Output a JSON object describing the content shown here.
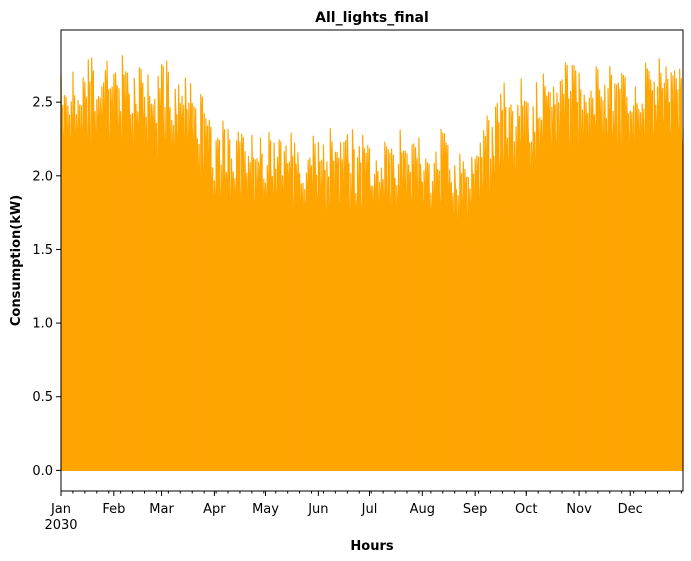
{
  "chart_data": {
    "type": "area",
    "title": "All_lights_final",
    "xlabel": "Hours",
    "ylabel": "Consumption(kW)",
    "series": [
      {
        "color": "#FFA500",
        "resolution": "hourly",
        "daily_peak_envelope": {
          "x": [
            "2030-01-01",
            "2030-01-15",
            "2030-02-01",
            "2030-02-15",
            "2030-03-01",
            "2030-03-15",
            "2030-03-23",
            "2030-04-01",
            "2030-04-15",
            "2030-05-01",
            "2030-05-15",
            "2030-06-01",
            "2030-06-15",
            "2030-07-01",
            "2030-07-15",
            "2030-08-01",
            "2030-08-15",
            "2030-09-01",
            "2030-09-15",
            "2030-10-01",
            "2030-10-15",
            "2030-11-01",
            "2030-11-15",
            "2030-12-01",
            "2030-12-15",
            "2030-12-31"
          ],
          "y": [
            2.65,
            2.75,
            2.72,
            2.75,
            2.68,
            2.6,
            2.55,
            2.25,
            2.32,
            2.28,
            2.25,
            2.22,
            2.2,
            2.2,
            2.2,
            2.2,
            2.2,
            2.22,
            2.5,
            2.55,
            2.6,
            2.7,
            2.7,
            2.7,
            2.72,
            2.6
          ]
        },
        "min": 0.0,
        "max": 2.85
      }
    ],
    "x_ticks": [
      {
        "date": "2030-01-01",
        "label": "Jan",
        "sublabel": "2030"
      },
      {
        "date": "2030-02-01",
        "label": "Feb"
      },
      {
        "date": "2030-03-01",
        "label": "Mar"
      },
      {
        "date": "2030-04-01",
        "label": "Apr"
      },
      {
        "date": "2030-05-01",
        "label": "May"
      },
      {
        "date": "2030-06-01",
        "label": "Jun"
      },
      {
        "date": "2030-07-01",
        "label": "Jul"
      },
      {
        "date": "2030-08-01",
        "label": "Aug"
      },
      {
        "date": "2030-09-01",
        "label": "Sep"
      },
      {
        "date": "2030-10-01",
        "label": "Oct"
      },
      {
        "date": "2030-11-01",
        "label": "Nov"
      },
      {
        "date": "2030-12-01",
        "label": "Dec"
      }
    ],
    "y_ticks": [
      "0.0",
      "0.5",
      "1.0",
      "1.5",
      "2.0",
      "2.5"
    ],
    "xlim": [
      "2030-01-01",
      "2030-12-31T23:00"
    ],
    "ylim": [
      -0.14,
      2.99
    ],
    "grid": false,
    "legend": "none"
  }
}
